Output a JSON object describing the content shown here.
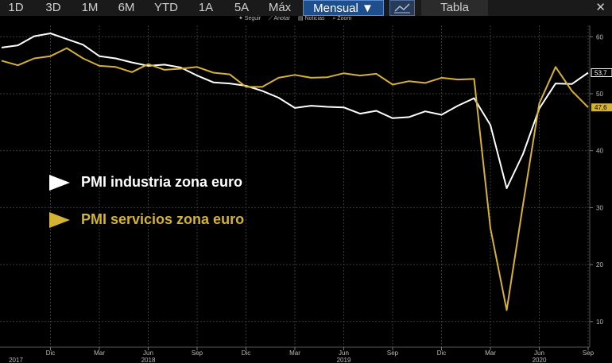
{
  "toolbar": {
    "ranges": [
      "1D",
      "3D",
      "1M",
      "6M",
      "YTD",
      "1A",
      "5A",
      "Máx"
    ],
    "period": "Mensual ▼",
    "table": "Tabla",
    "close": "✕"
  },
  "subbar": {
    "items": [
      "✦ Seguir",
      "⟋ Anotar",
      "▤ Noticias",
      "⌕ Zoom"
    ]
  },
  "colors": {
    "industria": "#ffffff",
    "servicios": "#d4b234",
    "grid": "#3a3a3a",
    "axis_text": "#bbbbbb"
  },
  "chart_data": {
    "type": "line",
    "x": [
      "2017-09",
      "2017-10",
      "2017-11",
      "2017-12",
      "2018-01",
      "2018-02",
      "2018-03",
      "2018-04",
      "2018-05",
      "2018-06",
      "2018-07",
      "2018-08",
      "2018-09",
      "2018-10",
      "2018-11",
      "2018-12",
      "2019-01",
      "2019-02",
      "2019-03",
      "2019-04",
      "2019-05",
      "2019-06",
      "2019-07",
      "2019-08",
      "2019-09",
      "2019-10",
      "2019-11",
      "2019-12",
      "2020-01",
      "2020-02",
      "2020-03",
      "2020-04",
      "2020-05",
      "2020-06",
      "2020-07",
      "2020-08",
      "2020-09"
    ],
    "series": [
      {
        "name": "PMI industria  zona euro",
        "values": [
          58.1,
          58.5,
          60.1,
          60.6,
          59.6,
          58.6,
          56.6,
          56.2,
          55.5,
          54.9,
          55.1,
          54.6,
          53.2,
          52.0,
          51.8,
          51.4,
          50.5,
          49.3,
          47.5,
          47.9,
          47.7,
          47.6,
          46.5,
          47.0,
          45.7,
          45.9,
          46.9,
          46.3,
          47.9,
          49.2,
          44.5,
          33.4,
          39.4,
          47.4,
          51.8,
          51.7,
          53.7
        ]
      },
      {
        "name": "PMI servicios zona euro",
        "values": [
          55.8,
          55.0,
          56.2,
          56.6,
          58.0,
          56.2,
          54.9,
          54.7,
          53.8,
          55.2,
          54.2,
          54.4,
          54.7,
          53.7,
          53.4,
          51.2,
          51.2,
          52.8,
          53.3,
          52.8,
          52.9,
          53.6,
          53.2,
          53.5,
          51.6,
          52.2,
          51.9,
          52.8,
          52.5,
          52.6,
          26.4,
          12.0,
          30.5,
          48.3,
          54.7,
          50.5,
          47.6
        ]
      }
    ],
    "last_value_labels": [
      "53,7",
      "47,6"
    ],
    "y_ticks": [
      10,
      20,
      30,
      40,
      50,
      60
    ],
    "ylim": [
      8,
      64
    ],
    "y_axis_position": "right",
    "x_ticks": [
      {
        "x": "2017-12",
        "label": "Dic"
      },
      {
        "x": "2018-03",
        "label": "Mar"
      },
      {
        "x": "2018-06",
        "label": "Jun"
      },
      {
        "x": "2018-09",
        "label": "Sep"
      },
      {
        "x": "2018-12",
        "label": "Dic"
      },
      {
        "x": "2019-03",
        "label": "Mar"
      },
      {
        "x": "2019-06",
        "label": "Jun"
      },
      {
        "x": "2019-09",
        "label": "Sep"
      },
      {
        "x": "2019-12",
        "label": "Dic"
      },
      {
        "x": "2020-03",
        "label": "Mar"
      },
      {
        "x": "2020-06",
        "label": "Jun"
      },
      {
        "x": "2020-09",
        "label": "Sep"
      }
    ],
    "year_labels": [
      {
        "x": "2017-09",
        "label": "2017"
      },
      {
        "x": "2018-06",
        "label": "2018"
      },
      {
        "x": "2019-06",
        "label": "2019"
      },
      {
        "x": "2020-06",
        "label": "2020"
      }
    ],
    "grid": true,
    "legend": {
      "position": "middle-left"
    }
  }
}
